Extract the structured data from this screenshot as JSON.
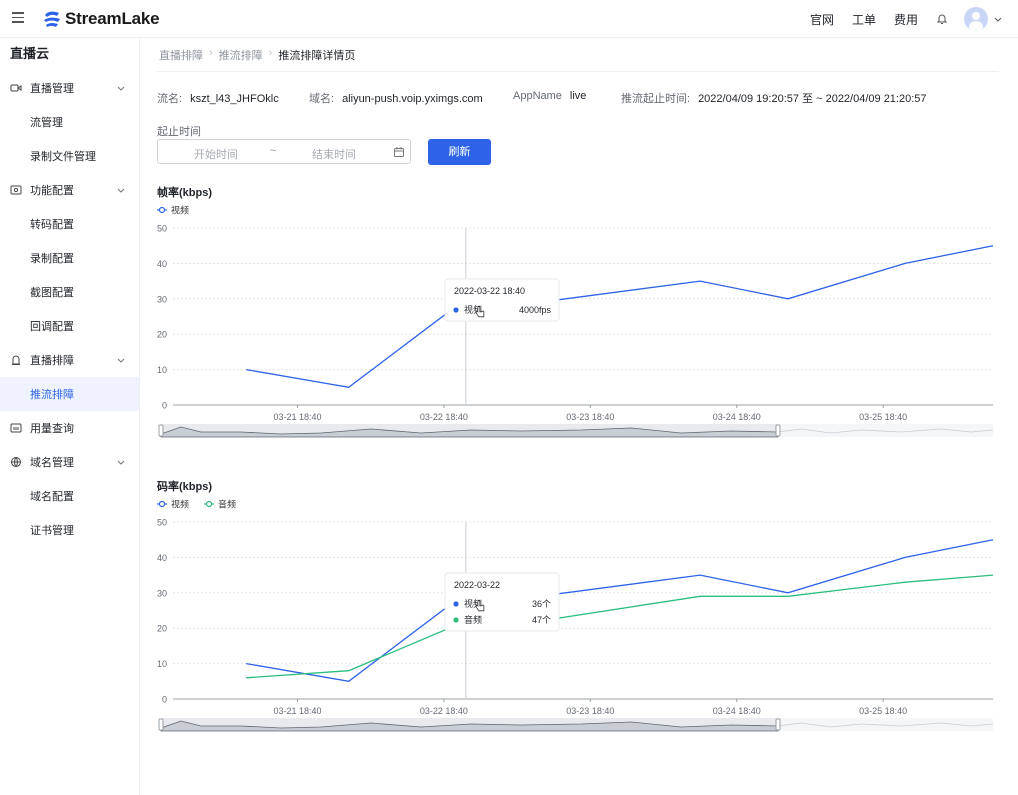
{
  "header": {
    "logo_text": "StreamLake",
    "links": [
      "官网",
      "工单",
      "费用"
    ],
    "icons": [
      "menu-icon",
      "bell-icon",
      "avatar",
      "chevron-down-icon"
    ]
  },
  "sidebar": {
    "title": "直播云",
    "items": [
      {
        "label": "直播管理",
        "type": "group",
        "icon": "video-icon"
      },
      {
        "label": "流管理",
        "type": "sub"
      },
      {
        "label": "录制文件管理",
        "type": "sub"
      },
      {
        "label": "功能配置",
        "type": "group",
        "icon": "settings-icon"
      },
      {
        "label": "转码配置",
        "type": "sub"
      },
      {
        "label": "录制配置",
        "type": "sub"
      },
      {
        "label": "截图配置",
        "type": "sub"
      },
      {
        "label": "回调配置",
        "type": "sub"
      },
      {
        "label": "直播排障",
        "type": "group",
        "icon": "diagnosis-icon"
      },
      {
        "label": "推流排障",
        "type": "sub",
        "active": true
      },
      {
        "label": "用量查询",
        "type": "group",
        "icon": "usage-icon"
      },
      {
        "label": "域名管理",
        "type": "group",
        "icon": "globe-icon"
      },
      {
        "label": "域名配置",
        "type": "sub"
      },
      {
        "label": "证书管理",
        "type": "sub"
      }
    ]
  },
  "breadcrumb": [
    "直播排障",
    "推流排障",
    "推流排障详情页"
  ],
  "info": {
    "stream_label": "流名:",
    "stream_value": "kszt_l43_JHFOklc",
    "domain_label": "域名:",
    "domain_value": "aliyun-push.voip.yximgs.com",
    "app_label": "AppName",
    "app_value": "live",
    "time_label": "推流起止时间:",
    "time_value": "2022/04/09 19:20:57 至 ~ 2022/04/09 21:20:57"
  },
  "filter": {
    "label": "起止时间",
    "start_placeholder": "开始时间",
    "separator": "~",
    "end_placeholder": "结束时间",
    "refresh_label": "刷新"
  },
  "colors": {
    "primary": "#2e63e8",
    "video": "#2e63e8",
    "audio": "#2dbd7f"
  },
  "chart_data": [
    {
      "type": "line",
      "title": "帧率(kbps)",
      "x_ticks": [
        "03-21 18:40",
        "03-22 18:40",
        "03-23 18:40",
        "03-24 18:40",
        "03-25 18:40"
      ],
      "ylim": [
        0,
        50
      ],
      "y_ticks": [
        0,
        10,
        20,
        30,
        40,
        50
      ],
      "grid": true,
      "legend": "top-left",
      "series": [
        {
          "name": "视频",
          "color": "#2e63e8",
          "x": [
            0.5,
            1.2,
            2.0,
            2.5,
            3.6,
            4.2,
            5.0,
            5.6
          ],
          "y": [
            10,
            5,
            30,
            29,
            35,
            30,
            40,
            45
          ]
        }
      ],
      "tooltip": {
        "title": "2022-03-22 18:40",
        "rows": [
          {
            "name": "视频",
            "value": "4000fps",
            "color": "#2e63e8"
          }
        ]
      }
    },
    {
      "type": "line",
      "title": "码率(kbps)",
      "x_ticks": [
        "03-21 18:40",
        "03-22 18:40",
        "03-23 18:40",
        "03-24 18:40",
        "03-25 18:40"
      ],
      "ylim": [
        0,
        50
      ],
      "y_ticks": [
        0,
        10,
        20,
        30,
        40,
        50
      ],
      "grid": true,
      "legend": "top-left",
      "series": [
        {
          "name": "视频",
          "color": "#2e63e8",
          "x": [
            0.5,
            1.2,
            2.0,
            2.5,
            3.6,
            4.2,
            5.0,
            5.6
          ],
          "y": [
            10,
            5,
            30,
            29,
            35,
            30,
            40,
            45
          ]
        },
        {
          "name": "音频",
          "color": "#2dbd7f",
          "x": [
            0.5,
            1.2,
            2.0,
            2.5,
            3.6,
            4.2,
            5.0,
            5.6
          ],
          "y": [
            6,
            8,
            22,
            22,
            29,
            29,
            33,
            35
          ]
        }
      ],
      "tooltip": {
        "title": "2022-03-22",
        "rows": [
          {
            "name": "视频",
            "value": "36个",
            "color": "#2e63e8"
          },
          {
            "name": "音频",
            "value": "47个",
            "color": "#2dbd7f"
          }
        ]
      }
    }
  ]
}
